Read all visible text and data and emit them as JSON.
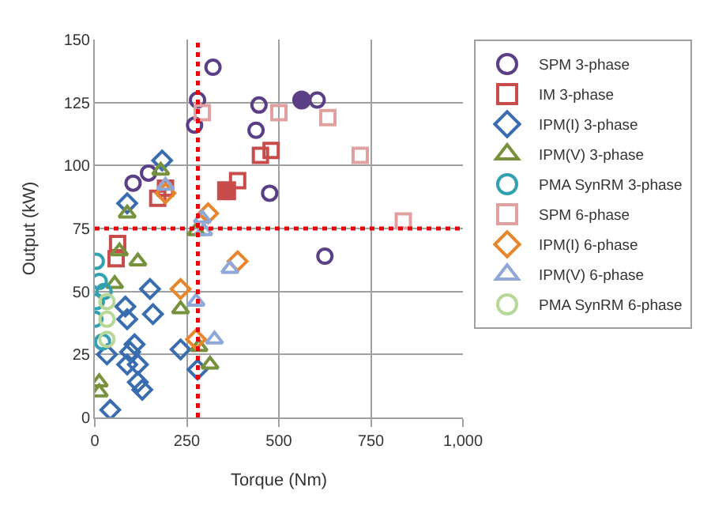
{
  "chart_data": {
    "type": "scatter",
    "xlabel": "Torque (Nm)",
    "ylabel": "Output (kW)",
    "xlim": [
      0,
      1000
    ],
    "ylim": [
      0,
      150
    ],
    "xticks": [
      0,
      250,
      500,
      750,
      {
        "value": 1000,
        "label": "1,000"
      }
    ],
    "yticks": [
      0,
      25,
      50,
      75,
      100,
      125,
      150
    ],
    "grid": true,
    "legend": "right",
    "ref_lines": [
      {
        "axis": "x",
        "value": 280,
        "color": "#e8000b",
        "line_style": "dotted"
      },
      {
        "axis": "y",
        "value": 75,
        "color": "#e8000b",
        "line_style": "dotted"
      }
    ],
    "series": [
      {
        "name": "SPM 3-phase",
        "color": "#5b3f86",
        "marker": "circle",
        "x": [
          321,
          279,
          271,
          446,
          438,
          475,
          625,
          604,
          104,
          146
        ],
        "values": [
          139,
          126,
          116,
          124,
          114,
          89,
          64,
          126,
          93,
          97
        ]
      },
      {
        "name": "IM 3-phase",
        "color": "#c84c4c",
        "marker": "square",
        "x": [
          171,
          192,
          388,
          479,
          450,
          62,
          58
        ],
        "values": [
          87,
          91,
          94,
          106,
          104,
          69,
          63
        ]
      },
      {
        "name": "IPM(I) 3-phase",
        "color": "#3a6cb0",
        "marker": "diamond",
        "x": [
          183,
          150,
          158,
          83,
          88,
          108,
          96,
          117,
          88,
          117,
          129,
          42,
          233,
          279,
          33,
          88
        ],
        "values": [
          102,
          51,
          41,
          44,
          39,
          29,
          26,
          21,
          21,
          14,
          11,
          3,
          27,
          19,
          25,
          85
        ]
      },
      {
        "name": "IPM(V) 3-phase",
        "color": "#76923c",
        "marker": "triangle",
        "x": [
          179,
          88,
          67,
          117,
          233,
          275,
          12,
          12,
          313,
          283,
          54
        ],
        "values": [
          98,
          81,
          66,
          62,
          43,
          74,
          14,
          10,
          21,
          28,
          53
        ]
      },
      {
        "name": "PMA SynRM 3-phase",
        "color": "#31a0b0",
        "marker": "circle",
        "x": [
          4,
          12,
          4,
          0,
          21,
          25
        ],
        "values": [
          62,
          54,
          46,
          39,
          30,
          50
        ]
      },
      {
        "name": "SPM 6-phase",
        "color": "#e0a0a0",
        "marker": "square",
        "x": [
          292,
          500,
          633,
          721,
          838
        ],
        "values": [
          121,
          121,
          119,
          104,
          78
        ]
      },
      {
        "name": "IPM(I) 6-phase",
        "color": "#e8852a",
        "marker": "diamond",
        "x": [
          308,
          388,
          233,
          275,
          192
        ],
        "values": [
          81,
          62,
          51,
          31,
          89
        ]
      },
      {
        "name": "IPM(V) 6-phase",
        "color": "#8fa8d8",
        "marker": "triangle",
        "x": [
          292,
          367,
          275,
          325,
          192,
          296
        ],
        "values": [
          79,
          59,
          46,
          31,
          92,
          74
        ]
      },
      {
        "name": "PMA SynRM 6-phase",
        "color": "#b8d89a",
        "marker": "circle",
        "x": [
          33,
          33,
          33
        ],
        "values": [
          46,
          39,
          31
        ]
      },
      {
        "color": "#5b3f86",
        "marker": "circle",
        "x": [
          562
        ],
        "values": [
          126
        ]
      },
      {
        "color": "#c84c4c",
        "marker": "square",
        "x": [
          358
        ],
        "values": [
          90
        ]
      }
    ]
  }
}
